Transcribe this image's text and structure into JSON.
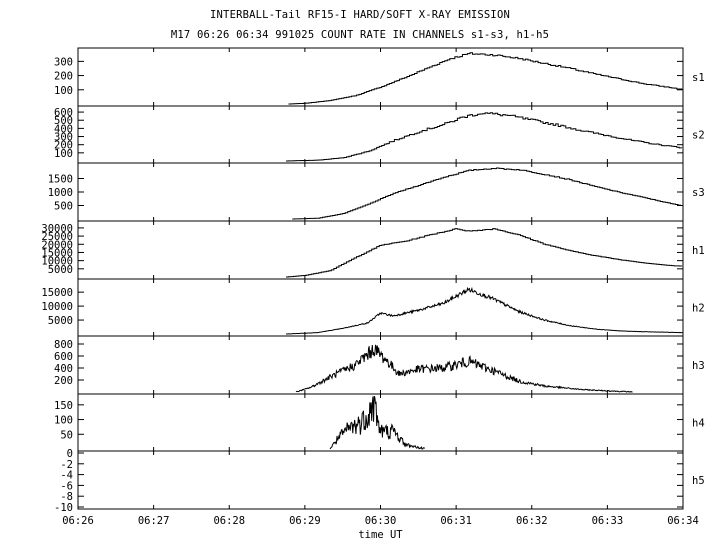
{
  "title": "INTERBALL-Tail RF15-I HARD/SOFT X-RAY EMISSION",
  "subtitle": "M17  06:26 06:34 991025  COUNT RATE IN CHANNELS s1-s3, h1-h5",
  "chart_data": {
    "type": "line",
    "xlabel": "time UT",
    "x_ticks": [
      "06:26",
      "06:27",
      "06:28",
      "06:29",
      "06:30",
      "06:31",
      "06:32",
      "06:33",
      "06:34"
    ],
    "xlim": [
      "06:26",
      "06:34"
    ],
    "panels": [
      {
        "name": "s1",
        "ylim": [
          0,
          380
        ],
        "yticks": [
          "100",
          "200",
          "300"
        ],
        "points": [
          [
            "06:28:47",
            0
          ],
          [
            "06:29:00",
            5
          ],
          [
            "06:29:20",
            25
          ],
          [
            "06:29:40",
            60
          ],
          [
            "06:30:00",
            120
          ],
          [
            "06:30:20",
            190
          ],
          [
            "06:30:40",
            265
          ],
          [
            "06:30:55",
            320
          ],
          [
            "06:31:10",
            355
          ],
          [
            "06:31:30",
            345
          ],
          [
            "06:31:50",
            320
          ],
          [
            "06:32:10",
            285
          ],
          [
            "06:32:30",
            250
          ],
          [
            "06:32:50",
            210
          ],
          [
            "06:33:10",
            175
          ],
          [
            "06:33:30",
            140
          ],
          [
            "06:33:50",
            115
          ],
          [
            "06:34:00",
            100
          ]
        ]
      },
      {
        "name": "s2",
        "ylim": [
          0,
          650
        ],
        "yticks": [
          "100",
          "200",
          "300",
          "400",
          "500",
          "600"
        ],
        "points": [
          [
            "06:28:45",
            0
          ],
          [
            "06:29:10",
            10
          ],
          [
            "06:29:30",
            40
          ],
          [
            "06:29:50",
            120
          ],
          [
            "06:30:10",
            250
          ],
          [
            "06:30:30",
            360
          ],
          [
            "06:30:50",
            450
          ],
          [
            "06:31:05",
            540
          ],
          [
            "06:31:20",
            590
          ],
          [
            "06:31:40",
            560
          ],
          [
            "06:32:00",
            500
          ],
          [
            "06:32:20",
            440
          ],
          [
            "06:32:40",
            370
          ],
          [
            "06:33:00",
            310
          ],
          [
            "06:33:20",
            250
          ],
          [
            "06:33:40",
            200
          ],
          [
            "06:34:00",
            160
          ]
        ]
      },
      {
        "name": "s3",
        "ylim": [
          0,
          2000
        ],
        "yticks": [
          "500",
          "1000",
          "1500"
        ],
        "points": [
          [
            "06:28:50",
            0
          ],
          [
            "06:29:10",
            30
          ],
          [
            "06:29:30",
            200
          ],
          [
            "06:29:50",
            550
          ],
          [
            "06:30:10",
            950
          ],
          [
            "06:30:30",
            1250
          ],
          [
            "06:30:50",
            1550
          ],
          [
            "06:31:10",
            1800
          ],
          [
            "06:31:30",
            1880
          ],
          [
            "06:31:50",
            1820
          ],
          [
            "06:32:10",
            1650
          ],
          [
            "06:32:30",
            1450
          ],
          [
            "06:32:50",
            1200
          ],
          [
            "06:33:10",
            980
          ],
          [
            "06:33:30",
            780
          ],
          [
            "06:33:50",
            570
          ],
          [
            "06:34:00",
            480
          ]
        ]
      },
      {
        "name": "h1",
        "ylim": [
          0,
          33000
        ],
        "yticks": [
          "5000",
          "10000",
          "15000",
          "20000",
          "25000",
          "30000"
        ],
        "points": [
          [
            "06:28:45",
            0
          ],
          [
            "06:29:00",
            1000
          ],
          [
            "06:29:20",
            4000
          ],
          [
            "06:29:40",
            12000
          ],
          [
            "06:30:00",
            19500
          ],
          [
            "06:30:20",
            22000
          ],
          [
            "06:30:40",
            26000
          ],
          [
            "06:31:00",
            29500
          ],
          [
            "06:31:10",
            28000
          ],
          [
            "06:31:30",
            29500
          ],
          [
            "06:31:50",
            25500
          ],
          [
            "06:32:10",
            20000
          ],
          [
            "06:32:30",
            16000
          ],
          [
            "06:32:50",
            13000
          ],
          [
            "06:33:10",
            10500
          ],
          [
            "06:33:30",
            8500
          ],
          [
            "06:33:50",
            7000
          ],
          [
            "06:34:00",
            6500
          ]
        ]
      },
      {
        "name": "h2",
        "ylim": [
          0,
          19000
        ],
        "yticks": [
          "5000",
          "10000",
          "15000"
        ],
        "points": [
          [
            "06:28:45",
            0
          ],
          [
            "06:29:10",
            500
          ],
          [
            "06:29:30",
            2000
          ],
          [
            "06:29:50",
            4000
          ],
          [
            "06:30:00",
            7500
          ],
          [
            "06:30:10",
            6500
          ],
          [
            "06:30:30",
            8500
          ],
          [
            "06:30:50",
            11000
          ],
          [
            "06:31:10",
            16000
          ],
          [
            "06:31:30",
            12500
          ],
          [
            "06:31:50",
            8000
          ],
          [
            "06:32:10",
            5000
          ],
          [
            "06:32:30",
            3000
          ],
          [
            "06:32:50",
            1800
          ],
          [
            "06:33:10",
            1100
          ],
          [
            "06:33:30",
            800
          ],
          [
            "06:34:00",
            500
          ]
        ]
      },
      {
        "name": "h3",
        "ylim": [
          0,
          900
        ],
        "yticks": [
          "200",
          "400",
          "600",
          "800"
        ],
        "points": [
          [
            "06:28:53",
            0
          ],
          [
            "06:29:05",
            80
          ],
          [
            "06:29:20",
            250
          ],
          [
            "06:29:40",
            450
          ],
          [
            "06:29:55",
            720
          ],
          [
            "06:30:05",
            520
          ],
          [
            "06:30:15",
            300
          ],
          [
            "06:30:30",
            380
          ],
          [
            "06:30:50",
            400
          ],
          [
            "06:31:10",
            510
          ],
          [
            "06:31:30",
            350
          ],
          [
            "06:31:50",
            180
          ],
          [
            "06:32:10",
            100
          ],
          [
            "06:32:40",
            40
          ],
          [
            "06:33:00",
            20
          ],
          [
            "06:33:20",
            0
          ]
        ]
      },
      {
        "name": "h4",
        "ylim": [
          0,
          180
        ],
        "yticks": [
          "50",
          "100",
          "150"
        ],
        "points": [
          [
            "06:29:20",
            0
          ],
          [
            "06:29:25",
            30
          ],
          [
            "06:29:35",
            70
          ],
          [
            "06:29:45",
            90
          ],
          [
            "06:29:55",
            150
          ],
          [
            "06:30:00",
            60
          ],
          [
            "06:30:10",
            60
          ],
          [
            "06:30:20",
            15
          ],
          [
            "06:30:30",
            5
          ],
          [
            "06:30:35",
            0
          ]
        ]
      },
      {
        "name": "h5",
        "ylim": [
          -10,
          0
        ],
        "yticks": [
          "-10",
          "-8",
          "-6",
          "-4",
          "-2",
          "0"
        ],
        "points": []
      }
    ]
  }
}
